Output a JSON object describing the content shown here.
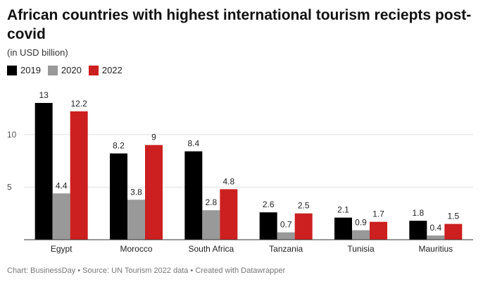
{
  "chart_data": {
    "type": "bar",
    "title": "African countries with highest international tourism reciepts post-covid",
    "subtitle": "(in USD billion)",
    "categories": [
      "Egypt",
      "Morocco",
      "South Africa",
      "Tanzania",
      "Tunisia",
      "Mauritius"
    ],
    "series": [
      {
        "name": "2019",
        "color": "#000000",
        "values": [
          13,
          8.2,
          8.4,
          2.6,
          2.1,
          1.8
        ]
      },
      {
        "name": "2020",
        "color": "#999999",
        "values": [
          4.4,
          3.8,
          2.8,
          0.7,
          0.9,
          0.4
        ]
      },
      {
        "name": "2022",
        "color": "#cc1f1f",
        "values": [
          12.2,
          9,
          4.8,
          2.5,
          1.7,
          1.5
        ]
      }
    ],
    "yticks": [
      5,
      10
    ],
    "ylim": [
      0,
      13
    ],
    "grid": true,
    "legend_position": "top-left",
    "footer": "Chart: BusinessDay • Source: UN Tourism 2022 data • Created with Datawrapper"
  }
}
